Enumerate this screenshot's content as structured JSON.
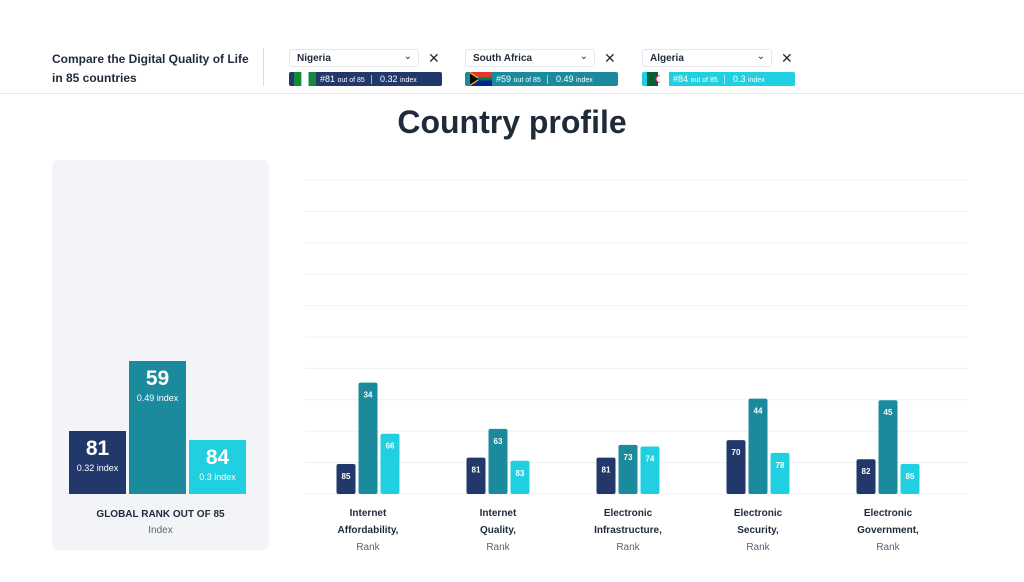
{
  "header": {
    "title": "Compare the Digital Quality of Life in 85 countries",
    "close_glyph": "✕",
    "chevron_glyph": "⌄"
  },
  "countries": [
    {
      "name": "Nigeria",
      "rank": "#81",
      "rank_suffix": "out of 85",
      "index": "0.32",
      "index_suffix": "index",
      "color": "#23386a",
      "flag": "nigeria-flag"
    },
    {
      "name": "South Africa",
      "rank": "#59",
      "rank_suffix": "out of 85",
      "index": "0.49",
      "index_suffix": "index",
      "color": "#1b8a9c",
      "flag": "south-africa-flag"
    },
    {
      "name": "Algeria",
      "rank": "#84",
      "rank_suffix": "out of 85",
      "index": "0.3",
      "index_suffix": "index",
      "color": "#21d0e0",
      "flag": "algeria-flag"
    }
  ],
  "page_title": "Country profile",
  "global": {
    "label": "GLOBAL RANK OUT OF 85",
    "sublabel": "Index",
    "bars": [
      {
        "rank": "81",
        "index": "0.32 index"
      },
      {
        "rank": "59",
        "index": "0.49 index"
      },
      {
        "rank": "84",
        "index": "0.3 index"
      }
    ]
  },
  "chart_data": {
    "type": "bar",
    "categories": [
      {
        "title": "Internet Affordability,",
        "lines": [
          "Internet",
          "Affordability,"
        ],
        "sub": "Rank"
      },
      {
        "title": "Internet Quality,",
        "lines": [
          "Internet",
          "Quality,"
        ],
        "sub": "Rank"
      },
      {
        "title": "Electronic Infrastructure,",
        "lines": [
          "Electronic",
          "Infrastructure,"
        ],
        "sub": "Rank"
      },
      {
        "title": "Electronic Security,",
        "lines": [
          "Electronic",
          "Security,"
        ],
        "sub": "Rank"
      },
      {
        "title": "Electronic Government,",
        "lines": [
          "Electronic",
          "Government,"
        ],
        "sub": "Rank"
      }
    ],
    "series": [
      {
        "values": [
          85,
          81,
          81,
          70,
          82
        ],
        "color": "#23386a"
      },
      {
        "values": [
          34,
          63,
          73,
          44,
          45
        ],
        "color": "#1b8a9c"
      },
      {
        "values": [
          66,
          83,
          74,
          78,
          85
        ],
        "color": "#21d0e0"
      }
    ],
    "value_meaning": "rank out of 85 (lower rank = taller bar)",
    "rank_max": 85,
    "grid": true
  }
}
